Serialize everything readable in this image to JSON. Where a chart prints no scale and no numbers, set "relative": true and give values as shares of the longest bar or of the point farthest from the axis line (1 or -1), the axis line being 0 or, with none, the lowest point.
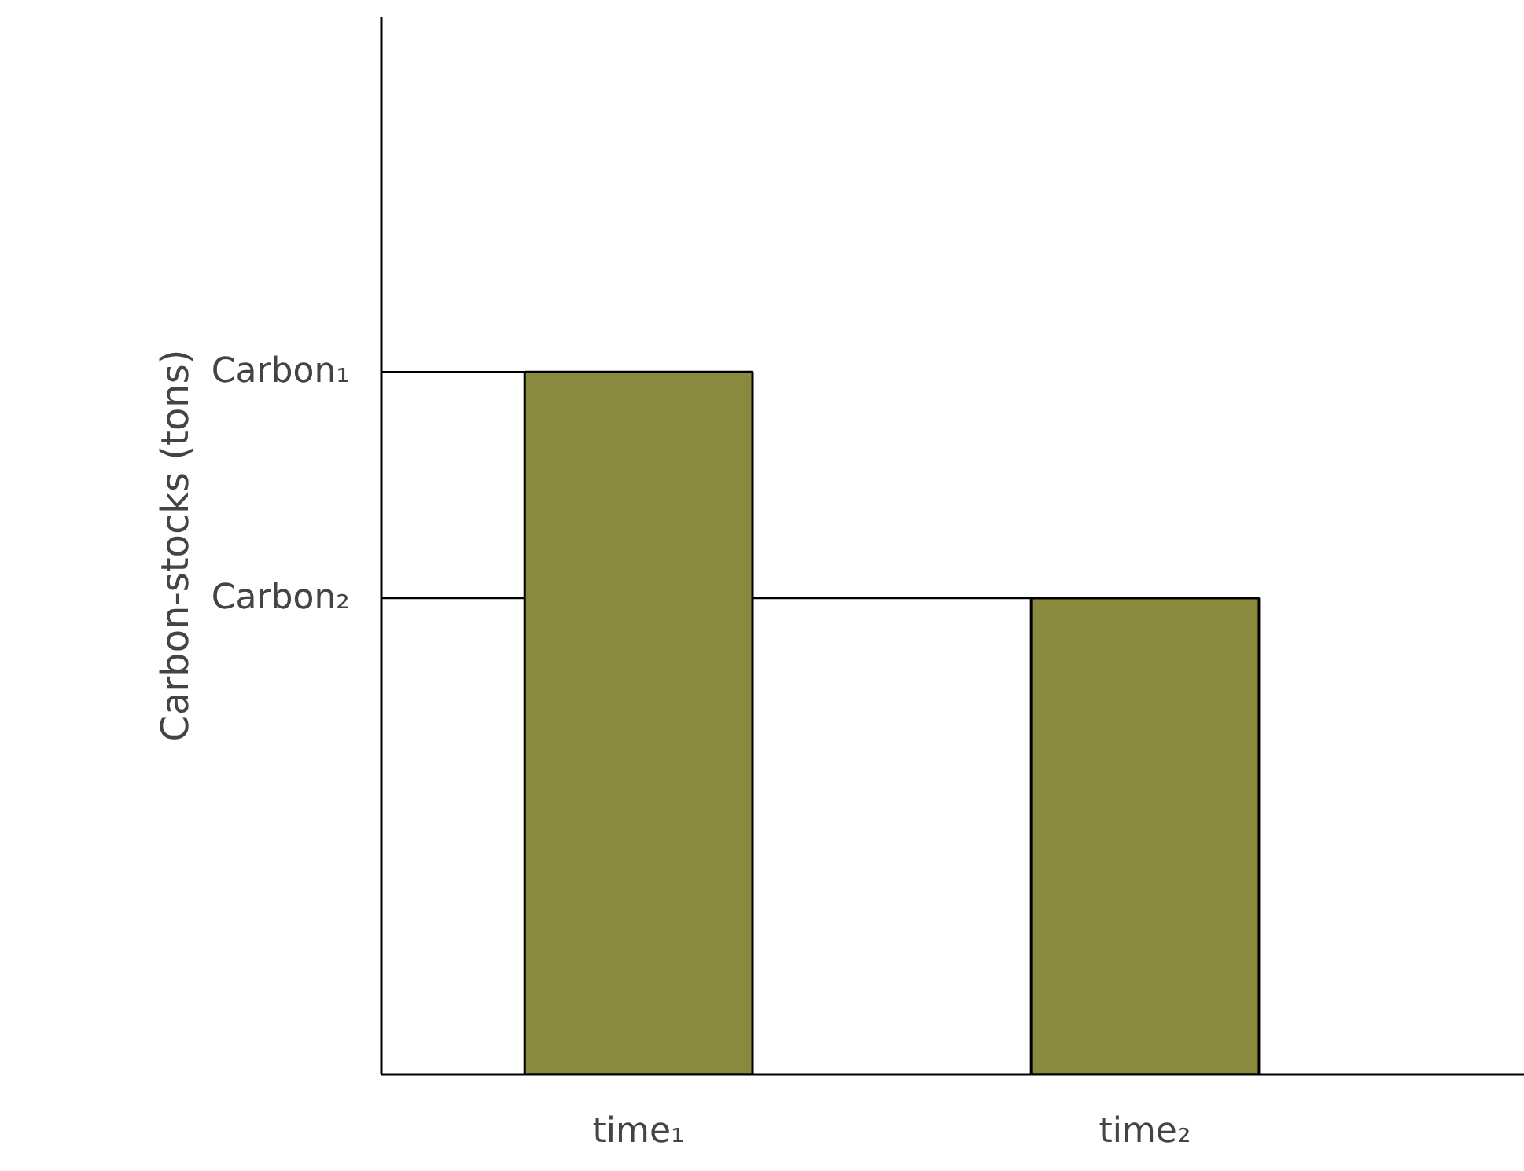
{
  "chart_data": {
    "type": "bar",
    "relative": true,
    "ylabel": "Carbon-stocks (tons)",
    "categories": [
      "time₁",
      "time₂"
    ],
    "values": [
      1,
      0.678
    ],
    "color": "#8a8a3e",
    "ref_lines": [
      {
        "axis": "y",
        "value": 1,
        "label": "Carbon₁"
      },
      {
        "axis": "y",
        "value": 0.678,
        "label": "Carbon₂"
      }
    ],
    "grid": false
  }
}
